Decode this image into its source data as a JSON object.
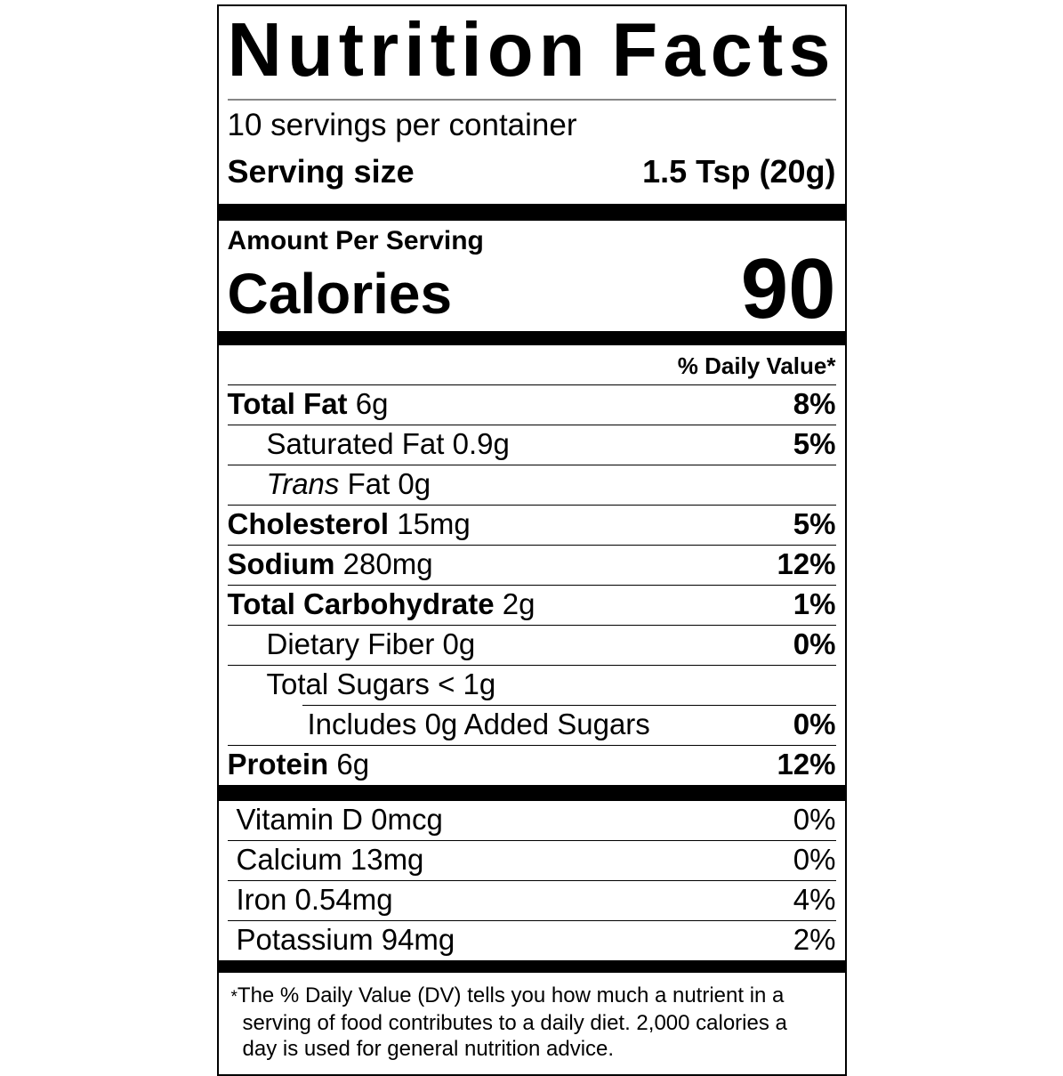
{
  "label": {
    "title": {
      "word1": "Nutrition",
      "word2": "Facts"
    },
    "servings_per_container": "10 servings per container",
    "serving_size": {
      "label": "Serving size",
      "value": "1.5 Tsp (20g)"
    },
    "amount_per_serving": "Amount Per Serving",
    "calories": {
      "label": "Calories",
      "value": "90"
    },
    "daily_value_header": "% Daily Value*",
    "rows": [
      {
        "b": "Total Fat",
        "t": " 6g",
        "dv": "8%"
      },
      {
        "t": "Saturated Fat 0.9g",
        "dv": "5%"
      },
      {
        "i": "Trans",
        "t": " Fat 0g",
        "dv": ""
      },
      {
        "b": "Cholesterol",
        "t": " 15mg",
        "dv": "5%"
      },
      {
        "b": "Sodium",
        "t": " 280mg",
        "dv": "12%"
      },
      {
        "b": "Total Carbohydrate",
        "t": " 2g",
        "dv": "1%"
      },
      {
        "t": "Dietary Fiber 0g",
        "dv": "0%"
      },
      {
        "t": "Total Sugars < 1g",
        "dv": ""
      },
      {
        "t": "Includes 0g Added Sugars",
        "dv": "0%"
      },
      {
        "b": "Protein",
        "t": " 6g",
        "dv": "12%"
      }
    ],
    "vitamins": [
      {
        "t": "Vitamin D 0mcg",
        "dv": "0%"
      },
      {
        "t": "Calcium 13mg",
        "dv": "0%"
      },
      {
        "t": "Iron 0.54mg",
        "dv": "4%"
      },
      {
        "t": "Potassium 94mg",
        "dv": "2%"
      }
    ],
    "footnote": {
      "asterisk": "*",
      "text": "The % Daily Value (DV) tells you how much a nutrient in a serving of food contributes to a daily diet. 2,000 calories a day is used for general nutrition advice."
    },
    "colors": {
      "ink": "#000000",
      "paper": "#ffffff",
      "hairline": "#868686"
    }
  }
}
